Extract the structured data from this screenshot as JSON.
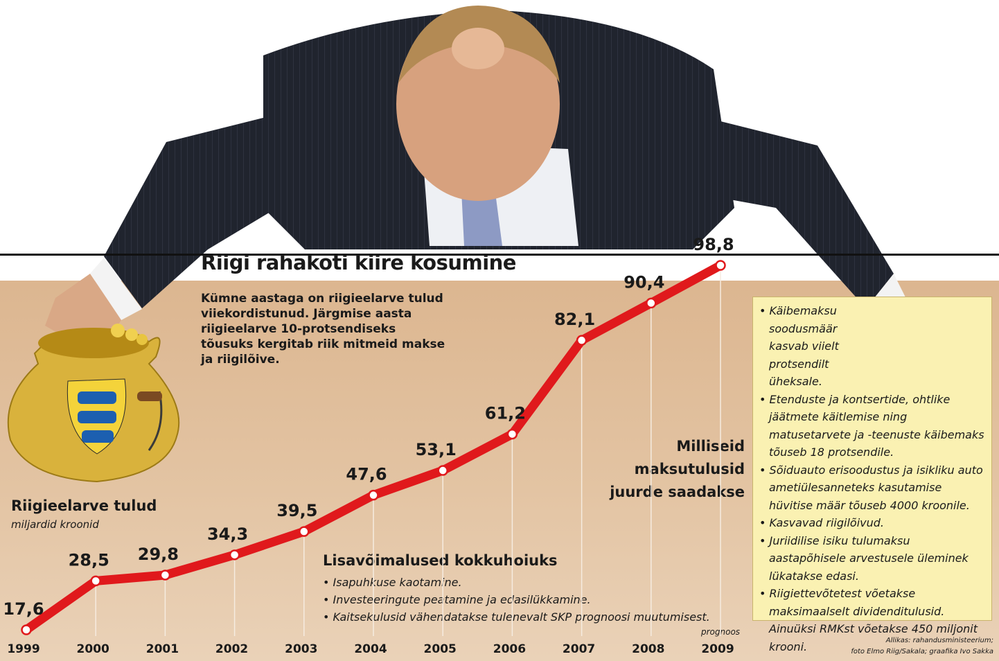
{
  "title": "Riigi rahakoti kiire kosumine",
  "intro": "Kümne aastaga on riigieelarve tulud viiekordistunud. Järgmise aasta riigieelarve 10-protsendiseks tõusuks kergitab riik mitmeid makse ja riigilõive.",
  "chart_label": "Riigieelarve tulud",
  "chart_unit": "miljardid kroonid",
  "question": "Milliseid maksutulusid juurde saadakse",
  "forecast_label": "prognoos",
  "savings": {
    "title": "Lisavõimalused kokkuhoiuks",
    "items": [
      "Isapuhkuse kaotamine.",
      "Investeeringute peatamine ja edasilükkamine.",
      "Kaitsekulusid vähendatakse tulenevalt SKP prognoosi muutumisest."
    ]
  },
  "notes": [
    "Käibemaksu soodusmäär kasvab viielt protsendilt üheksale.",
    "Etenduste ja kontsertide, ohtlike jäätmete käitlemise ning matusetarvete ja -teenuste käibemaks tõuseb 18 protsendile.",
    "Sõiduauto erisoodustus ja isikliku auto ametiülesanneteks kasutamise hüvitise määr tõuseb 4000 kroonile.",
    "Kasvavad riigilõivud.",
    "Juriidilise isiku tulumaksu aastapõhisele arvestusele üleminek lükatakse edasi.",
    "Riigiettevõtetest võetakse maksimaalselt dividenditulusid. Ainuüksi RMKst võetakse 450 miljonit krooni."
  ],
  "source_line1": "Allikas: rahandusministeerium;",
  "source_line2": "foto Elmo Riig/Sakala; graafika Ivo Sakka",
  "colors": {
    "line": "#e0191c",
    "panel": "#dfbd99",
    "notes_bg": "#faf1b2"
  },
  "chart_data": {
    "type": "line",
    "title": "Riigieelarve tulud",
    "ylabel": "miljardid kroonid",
    "x": [
      "1999",
      "2000",
      "2001",
      "2002",
      "2003",
      "2004",
      "2005",
      "2006",
      "2007",
      "2008",
      "2009"
    ],
    "values": [
      17.6,
      28.5,
      29.8,
      34.3,
      39.5,
      47.6,
      53.1,
      61.2,
      82.1,
      90.4,
      98.8
    ],
    "value_labels": [
      "17,6",
      "28,5",
      "29,8",
      "34,3",
      "39,5",
      "47,6",
      "53,1",
      "61,2",
      "82,1",
      "90,4",
      "98,8"
    ],
    "forecast_year": "2009",
    "grid": false
  }
}
